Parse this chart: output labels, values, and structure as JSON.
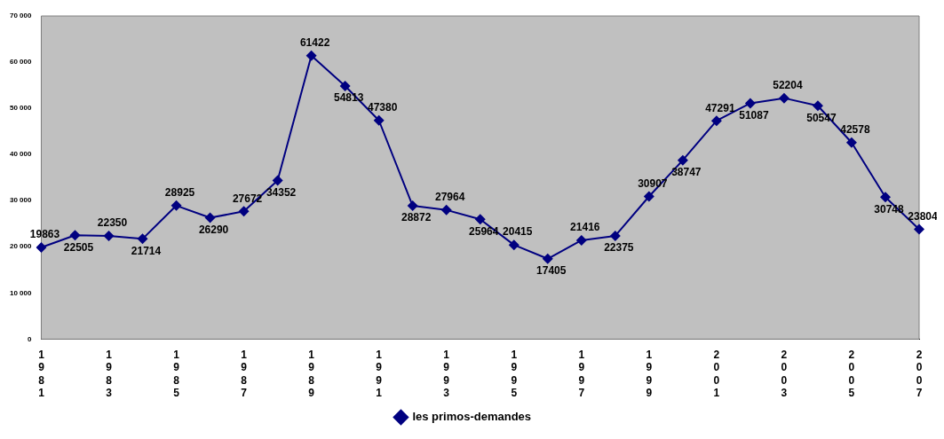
{
  "chart_data": {
    "type": "line",
    "categories": [
      "1981",
      null,
      "1983",
      null,
      "1985",
      null,
      "1987",
      null,
      "1989",
      null,
      "1991",
      null,
      "1993",
      null,
      "1995",
      null,
      "1997",
      null,
      "1999",
      null,
      "2001",
      null,
      "2003",
      null,
      "2005",
      null,
      "2007"
    ],
    "series": [
      {
        "name": "les primos-demandes",
        "color": "#000080",
        "values": [
          19863,
          22505,
          22350,
          21714,
          28925,
          26290,
          27672,
          34352,
          61422,
          54813,
          47380,
          28872,
          27964,
          25964,
          20415,
          17405,
          21416,
          22375,
          30907,
          38747,
          47291,
          51087,
          52204,
          50547,
          42578,
          30748,
          23804
        ]
      }
    ],
    "ylim": [
      0,
      70000
    ],
    "yticks": [
      {
        "value": 0,
        "label": "0"
      },
      {
        "value": 10000,
        "label": "10 000"
      },
      {
        "value": 20000,
        "label": "20 000"
      },
      {
        "value": 30000,
        "label": "30 000"
      },
      {
        "value": 40000,
        "label": "40 000"
      },
      {
        "value": 50000,
        "label": "50 000"
      },
      {
        "value": 60000,
        "label": "60 000"
      },
      {
        "value": 70000,
        "label": "70 000"
      }
    ],
    "grid": false,
    "legend": "bottom",
    "marker": "diamond",
    "line_style": "solid",
    "data_labels": true
  }
}
